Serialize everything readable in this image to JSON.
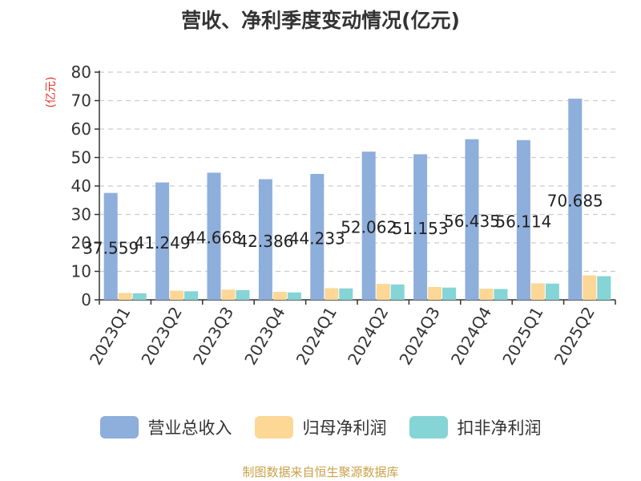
{
  "chart_data": {
    "type": "bar",
    "title": "营收、净利季度变动情况(亿元)",
    "ylabel": "(亿元)",
    "xlabel": "",
    "categories": [
      "2023Q1",
      "2023Q2",
      "2023Q3",
      "2023Q4",
      "2024Q1",
      "2024Q2",
      "2024Q3",
      "2024Q4",
      "2025Q1",
      "2025Q2"
    ],
    "series": [
      {
        "name": "营业总收入",
        "color": "#8eaedb",
        "values": [
          37.559,
          41.249,
          44.668,
          42.386,
          44.233,
          52.062,
          51.153,
          56.435,
          56.114,
          70.685
        ],
        "labels": [
          "37.559",
          "41.249",
          "44.668",
          "42.386",
          "44.233",
          "52.062",
          "51.153",
          "56.435",
          "56.114",
          "70.685"
        ]
      },
      {
        "name": "归母净利润",
        "color": "#fcd796",
        "values": [
          2.4,
          3.2,
          3.6,
          2.8,
          4.1,
          5.6,
          4.5,
          3.9,
          5.8,
          8.6
        ]
      },
      {
        "name": "扣非净利润",
        "color": "#85d4d6",
        "values": [
          2.3,
          3.0,
          3.4,
          2.6,
          4.0,
          5.4,
          4.3,
          3.8,
          5.7,
          8.3
        ]
      }
    ],
    "yticks": [
      0,
      10,
      20,
      30,
      40,
      50,
      60,
      70,
      80
    ],
    "ylim": [
      0,
      80
    ],
    "grid": true,
    "legend_position": "bottom"
  },
  "source_text": "制图数据来自恒生聚源数据库"
}
